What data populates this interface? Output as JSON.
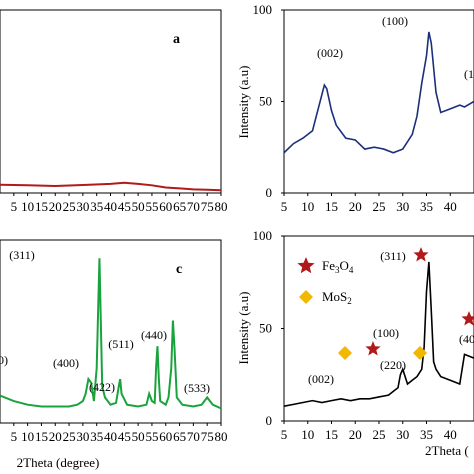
{
  "chart_data": [
    {
      "type": "line",
      "panel_label": "a",
      "xlim": [
        0,
        80
      ],
      "xticks": [
        "5",
        "10",
        "15",
        "20",
        "25",
        "30",
        "35",
        "40",
        "45",
        "50",
        "55",
        "60",
        "65",
        "70",
        "75",
        "80"
      ],
      "ylim": [
        0,
        100
      ],
      "colors": {
        "line": "#b01a1a",
        "frame": "#000000"
      },
      "series": [
        {
          "x": [
            0,
            10,
            20,
            30,
            40,
            45,
            50,
            55,
            60,
            65,
            70,
            75,
            80
          ],
          "y": [
            4.5,
            4.2,
            3.8,
            4.4,
            5.0,
            5.6,
            5.0,
            4.2,
            3.0,
            2.5,
            2.0,
            1.8,
            1.5
          ]
        }
      ]
    },
    {
      "type": "line",
      "xlim": [
        5,
        45
      ],
      "xticks": [
        "5",
        "10",
        "15",
        "20",
        "25",
        "30",
        "35",
        "40"
      ],
      "ylim": [
        0,
        100
      ],
      "yticks": [
        "0",
        "50",
        "100"
      ],
      "ylabel": "Intensity (a.u)",
      "peak_labels": [
        "(002)",
        "(100)",
        "(1"
      ],
      "colors": {
        "line": "#1b2f7a",
        "frame": "#000000"
      },
      "series": [
        {
          "x": [
            5,
            7,
            9,
            11,
            12,
            13,
            13.5,
            14,
            15,
            16,
            18,
            20,
            22,
            24,
            26,
            28,
            30,
            32,
            33,
            34,
            35,
            35.5,
            36,
            37,
            38,
            40,
            42,
            43,
            45
          ],
          "y": [
            22,
            27,
            30,
            34,
            44,
            54,
            59,
            57,
            45,
            37,
            30,
            29,
            24,
            25,
            24,
            22,
            24,
            32,
            42,
            60,
            75,
            88,
            82,
            55,
            44,
            46,
            48,
            47,
            50
          ]
        }
      ]
    },
    {
      "type": "line",
      "panel_label": "c",
      "xlim": [
        0,
        80
      ],
      "xticks": [
        "5",
        "10",
        "15",
        "20",
        "25",
        "30",
        "35",
        "40",
        "45",
        "50",
        "55",
        "60",
        "65",
        "70",
        "75",
        "80"
      ],
      "ylim": [
        0,
        100
      ],
      "xlabel": "2Theta (degree)",
      "peak_labels": [
        "(311)",
        "0)",
        "(400)",
        "(422)",
        "(511)",
        "(440)",
        "(533)"
      ],
      "colors": {
        "line": "#1aa33c",
        "frame": "#000000"
      },
      "series": [
        {
          "x": [
            0,
            5,
            10,
            15,
            20,
            25,
            28,
            30,
            31,
            32,
            33,
            34,
            35,
            35.5,
            36,
            36.5,
            37,
            38,
            40,
            42,
            43,
            43.5,
            44,
            46,
            50,
            53,
            54,
            55,
            56,
            56.5,
            57,
            57.5,
            58,
            60,
            61,
            62,
            62.6,
            63.2,
            64,
            66,
            70,
            73,
            75,
            77,
            80
          ],
          "y": [
            15,
            12,
            10,
            9,
            9,
            9,
            10,
            12,
            16,
            24,
            22,
            12,
            30,
            60,
            90,
            55,
            20,
            14,
            10,
            11,
            20,
            24,
            16,
            10,
            9,
            10,
            16,
            12,
            11,
            30,
            42,
            24,
            12,
            10,
            14,
            30,
            56,
            40,
            14,
            10,
            9,
            10,
            14,
            10,
            8
          ]
        }
      ]
    },
    {
      "type": "line",
      "xlim": [
        5,
        45
      ],
      "xticks": [
        "5",
        "10",
        "15",
        "20",
        "25",
        "30",
        "35",
        "40"
      ],
      "ylim": [
        0,
        100
      ],
      "yticks": [
        "0",
        "50",
        "100"
      ],
      "ylabel": "Intensity (a.u)",
      "xlabel": "2Theta (",
      "peak_labels": [
        "(311)",
        "(100)",
        "(002)",
        "(220)",
        "(40"
      ],
      "legend": [
        {
          "label": "Fe3O4",
          "marker": "star",
          "color": "#b01a1a"
        },
        {
          "label": "MoS2",
          "marker": "diamond",
          "color": "#f2b800"
        }
      ],
      "colors": {
        "line": "#000000",
        "frame": "#000000"
      },
      "series": [
        {
          "x": [
            5,
            7,
            9,
            11,
            13,
            15,
            17,
            19,
            21,
            23,
            25,
            27,
            28,
            29,
            29.5,
            30,
            31,
            32,
            33,
            34,
            34.5,
            35,
            35.5,
            36,
            36.5,
            37,
            38,
            40,
            42,
            43,
            45
          ],
          "y": [
            8,
            9,
            10,
            11,
            10,
            11,
            12,
            11,
            12,
            12,
            13,
            14,
            16,
            18,
            25,
            28,
            20,
            22,
            24,
            28,
            40,
            70,
            86,
            60,
            32,
            28,
            24,
            22,
            20,
            36,
            34
          ]
        }
      ]
    }
  ]
}
